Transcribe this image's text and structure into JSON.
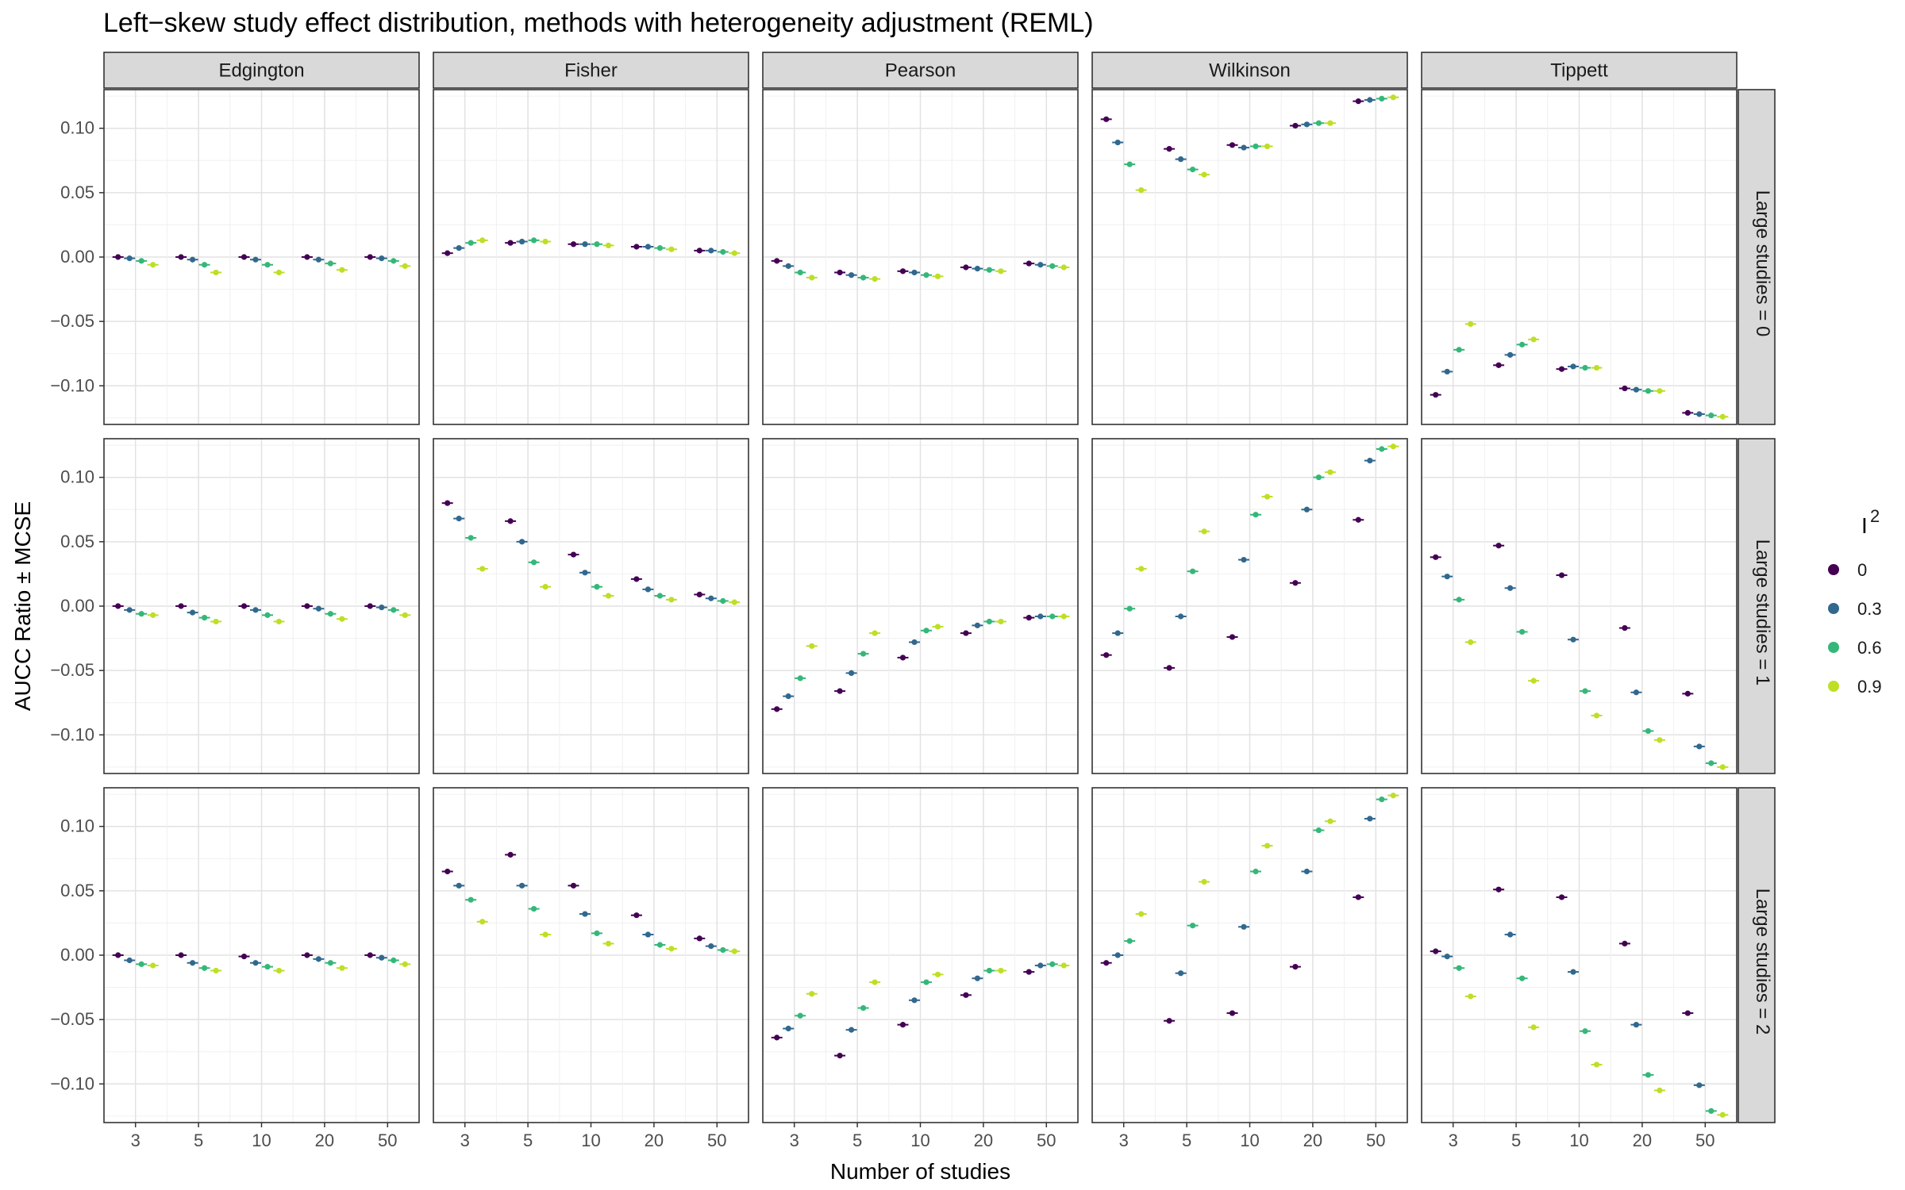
{
  "chart_data": {
    "type": "scatter",
    "title": "Left−skew study effect distribution, methods with heterogeneity adjustment (REML)",
    "xlabel": "Number of studies",
    "ylabel": "AUCC Ratio ± MCSE",
    "x_categories": [
      "3",
      "5",
      "10",
      "20",
      "50"
    ],
    "ylim": [
      -0.13,
      0.13
    ],
    "y_ticks": [
      0.1,
      0.05,
      0.0,
      -0.05,
      -0.1
    ],
    "y_tick_labels": [
      "0.10",
      "0.05",
      "0.00",
      "−0.05",
      "−0.10"
    ],
    "grid": true,
    "columns": [
      "Edgington",
      "Fisher",
      "Pearson",
      "Wilkinson",
      "Tippett"
    ],
    "rows": [
      "Large studies = 0",
      "Large studies = 1",
      "Large studies = 2"
    ],
    "legend": {
      "title": "I",
      "title_superscript": "2",
      "position": "right",
      "entries": [
        {
          "label": "0",
          "color": "#440154"
        },
        {
          "label": "0.3",
          "color": "#31688e"
        },
        {
          "label": "0.6",
          "color": "#35b779"
        },
        {
          "label": "0.9",
          "color": "#bddf26"
        }
      ]
    },
    "series_order": [
      "0",
      "0.3",
      "0.6",
      "0.9"
    ],
    "values": {
      "Large studies = 0": {
        "Edgington": [
          [
            0.0,
            -0.001,
            -0.003,
            -0.006
          ],
          [
            0.0,
            -0.002,
            -0.006,
            -0.012
          ],
          [
            0.0,
            -0.002,
            -0.006,
            -0.012
          ],
          [
            0.0,
            -0.002,
            -0.005,
            -0.01
          ],
          [
            0.0,
            -0.001,
            -0.003,
            -0.007
          ]
        ],
        "Fisher": [
          [
            0.003,
            0.007,
            0.011,
            0.013
          ],
          [
            0.011,
            0.012,
            0.013,
            0.012
          ],
          [
            0.01,
            0.01,
            0.01,
            0.009
          ],
          [
            0.008,
            0.008,
            0.007,
            0.006
          ],
          [
            0.005,
            0.005,
            0.004,
            0.003
          ]
        ],
        "Pearson": [
          [
            -0.003,
            -0.007,
            -0.012,
            -0.016
          ],
          [
            -0.012,
            -0.014,
            -0.016,
            -0.017
          ],
          [
            -0.011,
            -0.012,
            -0.014,
            -0.015
          ],
          [
            -0.008,
            -0.009,
            -0.01,
            -0.011
          ],
          [
            -0.005,
            -0.006,
            -0.007,
            -0.008
          ]
        ],
        "Wilkinson": [
          [
            0.107,
            0.089,
            0.072,
            0.052
          ],
          [
            0.084,
            0.076,
            0.068,
            0.064
          ],
          [
            0.087,
            0.085,
            0.086,
            0.086
          ],
          [
            0.102,
            0.103,
            0.104,
            0.104
          ],
          [
            0.121,
            0.122,
            0.123,
            0.124
          ]
        ],
        "Tippett": [
          [
            -0.107,
            -0.089,
            -0.072,
            -0.052
          ],
          [
            -0.084,
            -0.076,
            -0.068,
            -0.064
          ],
          [
            -0.087,
            -0.085,
            -0.086,
            -0.086
          ],
          [
            -0.102,
            -0.103,
            -0.104,
            -0.104
          ],
          [
            -0.121,
            -0.122,
            -0.123,
            -0.124
          ]
        ]
      },
      "Large studies = 1": {
        "Edgington": [
          [
            0.0,
            -0.003,
            -0.006,
            -0.007
          ],
          [
            0.0,
            -0.005,
            -0.009,
            -0.012
          ],
          [
            0.0,
            -0.003,
            -0.007,
            -0.012
          ],
          [
            0.0,
            -0.002,
            -0.006,
            -0.01
          ],
          [
            0.0,
            -0.001,
            -0.003,
            -0.007
          ]
        ],
        "Fisher": [
          [
            0.08,
            0.068,
            0.053,
            0.029
          ],
          [
            0.066,
            0.05,
            0.034,
            0.015
          ],
          [
            0.04,
            0.026,
            0.015,
            0.008
          ],
          [
            0.021,
            0.013,
            0.008,
            0.005
          ],
          [
            0.009,
            0.006,
            0.004,
            0.003
          ]
        ],
        "Pearson": [
          [
            -0.08,
            -0.07,
            -0.056,
            -0.031
          ],
          [
            -0.066,
            -0.052,
            -0.037,
            -0.021
          ],
          [
            -0.04,
            -0.028,
            -0.019,
            -0.016
          ],
          [
            -0.021,
            -0.015,
            -0.012,
            -0.012
          ],
          [
            -0.009,
            -0.008,
            -0.008,
            -0.008
          ]
        ],
        "Wilkinson": [
          [
            -0.038,
            -0.021,
            -0.002,
            0.029
          ],
          [
            -0.048,
            -0.008,
            0.027,
            0.058
          ],
          [
            -0.024,
            0.036,
            0.071,
            0.085
          ],
          [
            0.018,
            0.075,
            0.1,
            0.104
          ],
          [
            0.067,
            0.113,
            0.122,
            0.124
          ]
        ],
        "Tippett": [
          [
            0.038,
            0.023,
            0.005,
            -0.028
          ],
          [
            0.047,
            0.014,
            -0.02,
            -0.058
          ],
          [
            0.024,
            -0.026,
            -0.066,
            -0.085
          ],
          [
            -0.017,
            -0.067,
            -0.097,
            -0.104
          ],
          [
            -0.068,
            -0.109,
            -0.122,
            -0.125
          ]
        ]
      },
      "Large studies = 2": {
        "Edgington": [
          [
            0.0,
            -0.004,
            -0.007,
            -0.008
          ],
          [
            0.0,
            -0.006,
            -0.01,
            -0.012
          ],
          [
            -0.001,
            -0.006,
            -0.009,
            -0.012
          ],
          [
            0.0,
            -0.003,
            -0.006,
            -0.01
          ],
          [
            0.0,
            -0.002,
            -0.004,
            -0.007
          ]
        ],
        "Fisher": [
          [
            0.065,
            0.054,
            0.043,
            0.026
          ],
          [
            0.078,
            0.054,
            0.036,
            0.016
          ],
          [
            0.054,
            0.032,
            0.017,
            0.009
          ],
          [
            0.031,
            0.016,
            0.008,
            0.005
          ],
          [
            0.013,
            0.007,
            0.004,
            0.003
          ]
        ],
        "Pearson": [
          [
            -0.064,
            -0.057,
            -0.047,
            -0.03
          ],
          [
            -0.078,
            -0.058,
            -0.041,
            -0.021
          ],
          [
            -0.054,
            -0.035,
            -0.021,
            -0.015
          ],
          [
            -0.031,
            -0.018,
            -0.012,
            -0.012
          ],
          [
            -0.013,
            -0.008,
            -0.007,
            -0.008
          ]
        ],
        "Wilkinson": [
          [
            -0.006,
            0.0,
            0.011,
            0.032
          ],
          [
            -0.051,
            -0.014,
            0.023,
            0.057
          ],
          [
            -0.045,
            0.022,
            0.065,
            0.085
          ],
          [
            -0.009,
            0.065,
            0.097,
            0.104
          ],
          [
            0.045,
            0.106,
            0.121,
            0.124
          ]
        ],
        "Tippett": [
          [
            0.003,
            -0.001,
            -0.01,
            -0.032
          ],
          [
            0.051,
            0.016,
            -0.018,
            -0.056
          ],
          [
            0.045,
            -0.013,
            -0.059,
            -0.085
          ],
          [
            0.009,
            -0.054,
            -0.093,
            -0.105
          ],
          [
            -0.045,
            -0.101,
            -0.121,
            -0.124
          ]
        ]
      }
    }
  }
}
